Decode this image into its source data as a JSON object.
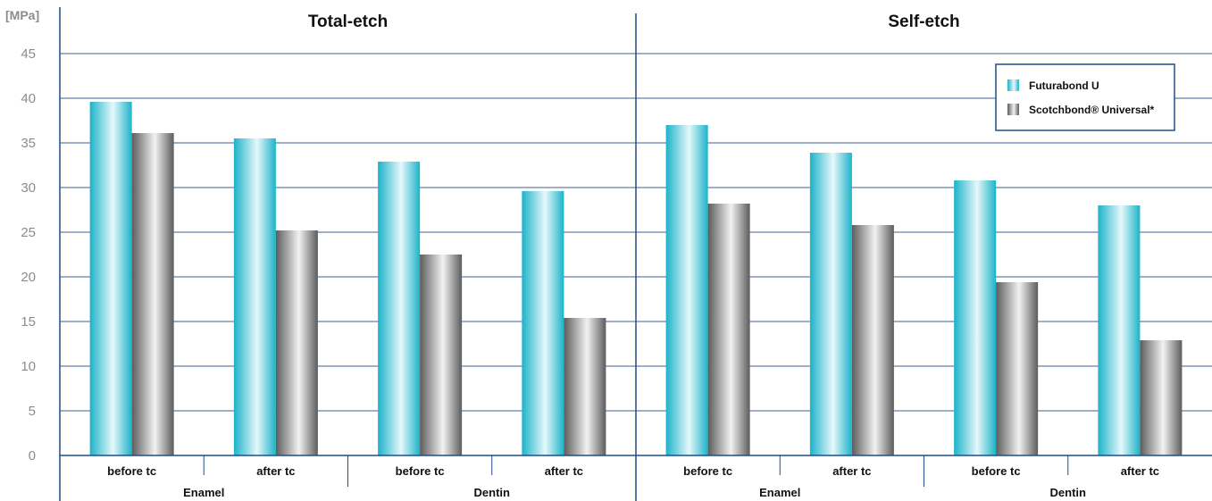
{
  "chart_data": {
    "type": "bar",
    "unit_label": "[MPa]",
    "ylim": [
      0,
      45
    ],
    "yticks": [
      0,
      5,
      10,
      15,
      20,
      25,
      30,
      35,
      40,
      45
    ],
    "grid": true,
    "legend_position": "top-right",
    "series": [
      {
        "name": "Futurabond U",
        "color": "#1cb3c9",
        "highlight": "#e6f8fb"
      },
      {
        "name": "Scotchbond® Universal*",
        "color": "#5c5c5c",
        "highlight": "#f2f2f2"
      }
    ],
    "panels": [
      {
        "title": "Total-etch",
        "groups": [
          {
            "label": "Enamel",
            "categories": [
              {
                "label": "before tc",
                "values": [
                  39.6,
                  36.1
                ]
              },
              {
                "label": "after tc",
                "values": [
                  35.5,
                  25.2
                ]
              }
            ]
          },
          {
            "label": "Dentin",
            "categories": [
              {
                "label": "before tc",
                "values": [
                  32.9,
                  22.5
                ]
              },
              {
                "label": "after tc",
                "values": [
                  29.6,
                  15.4
                ]
              }
            ]
          }
        ]
      },
      {
        "title": "Self-etch",
        "groups": [
          {
            "label": "Enamel",
            "categories": [
              {
                "label": "before tc",
                "values": [
                  37.0,
                  28.2
                ]
              },
              {
                "label": "after tc",
                "values": [
                  33.9,
                  25.8
                ]
              }
            ]
          },
          {
            "label": "Dentin",
            "categories": [
              {
                "label": "before tc",
                "values": [
                  30.8,
                  19.4
                ]
              },
              {
                "label": "after tc",
                "values": [
                  28.0,
                  12.9
                ]
              }
            ]
          }
        ]
      }
    ],
    "axis_color": "#1f4e8c",
    "grid_color": "#3d5f95"
  }
}
